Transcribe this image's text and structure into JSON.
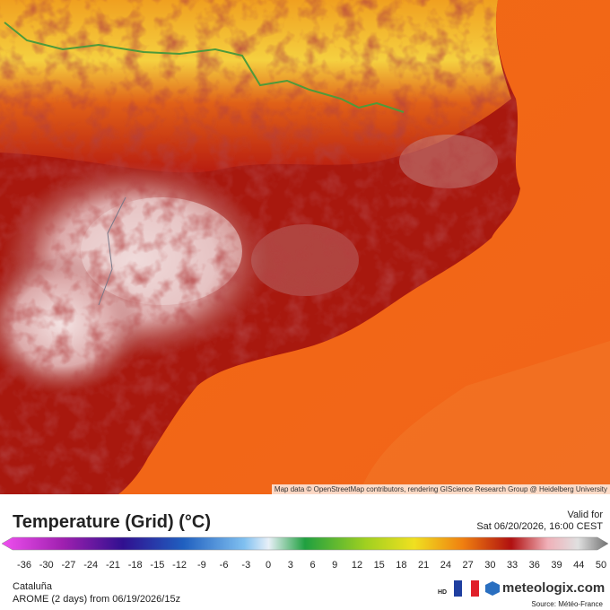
{
  "map": {
    "attribution": "Map data © OpenStreetMap contributors, rendering GIScience Research Group @ Heidelberg University"
  },
  "header": {
    "title": "Temperature (Grid) (°C)",
    "valid_label": "Valid for",
    "valid_time": "Sat 06/20/2026, 16:00 CEST"
  },
  "legend": {
    "ticks": [
      -36,
      -30,
      -27,
      -24,
      -21,
      -18,
      -15,
      -12,
      -9,
      -6,
      -3,
      0,
      3,
      6,
      9,
      12,
      15,
      18,
      21,
      24,
      27,
      30,
      33,
      36,
      39,
      44,
      50
    ]
  },
  "footer": {
    "region": "Cataluña",
    "model": "AROME (2 days) from 06/19/2026/15z",
    "hd": "HD",
    "brand": "meteologix.com",
    "source": "Source: Météo-France"
  }
}
